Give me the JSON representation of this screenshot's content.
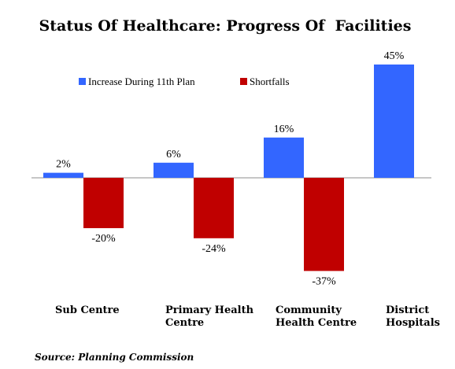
{
  "chart_data": {
    "type": "bar",
    "title": "Status Of Healthcare: Progress Of  Facilities",
    "categories": [
      [
        "Sub Centre"
      ],
      [
        "Primary Health",
        "Centre"
      ],
      [
        "Community",
        "Health Centre"
      ],
      [
        "District",
        "Hospitals"
      ]
    ],
    "series": [
      {
        "name": "Increase During 11th Plan",
        "color": "#3366ff",
        "values": [
          2,
          6,
          16,
          45
        ],
        "labels": [
          "2%",
          "6%",
          "16%",
          "45%"
        ]
      },
      {
        "name": "Shortfalls",
        "color": "#c00000",
        "values": [
          -20,
          -24,
          -37,
          null
        ],
        "labels": [
          "-20%",
          "-24%",
          "-37%",
          ""
        ]
      }
    ],
    "unit": "%",
    "ylim": [
      -45,
      47
    ],
    "legend_position": "top-left",
    "grid": false,
    "source": "Source: Planning Commission"
  }
}
